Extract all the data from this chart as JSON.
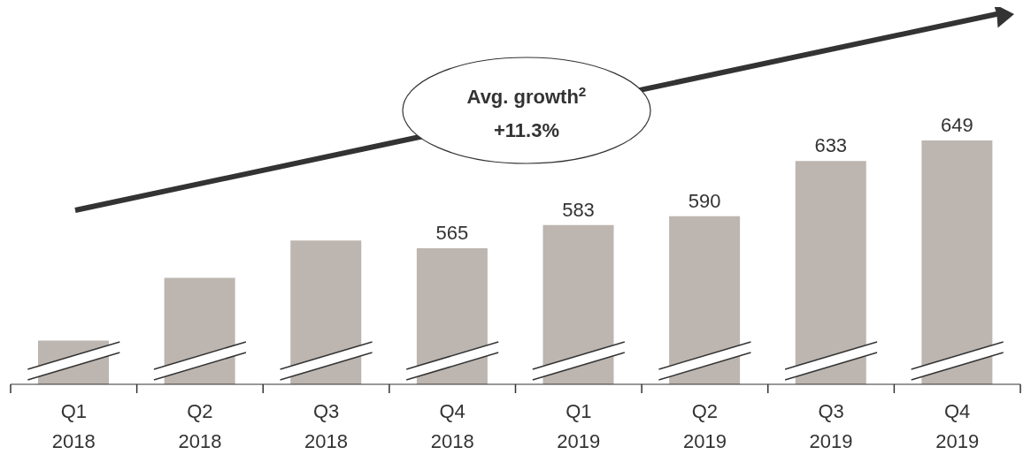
{
  "chart_data": {
    "type": "bar",
    "categories": [
      "Q1\n2018",
      "Q2\n2018",
      "Q3\n2018",
      "Q4\n2018",
      "Q1\n2019",
      "Q2\n2019",
      "Q3\n2019",
      "Q4\n2019"
    ],
    "values": [
      493,
      542,
      571,
      565,
      583,
      590,
      633,
      649
    ],
    "value_labels": [
      null,
      null,
      null,
      "565",
      "583",
      "590",
      "633",
      "649"
    ],
    "color": "#bcb5b0",
    "ylim": [
      459,
      649
    ],
    "tick_labels": "x",
    "annotations": [
      "Avg. growth$^{2}$\n+11.3%"
    ]
  }
}
